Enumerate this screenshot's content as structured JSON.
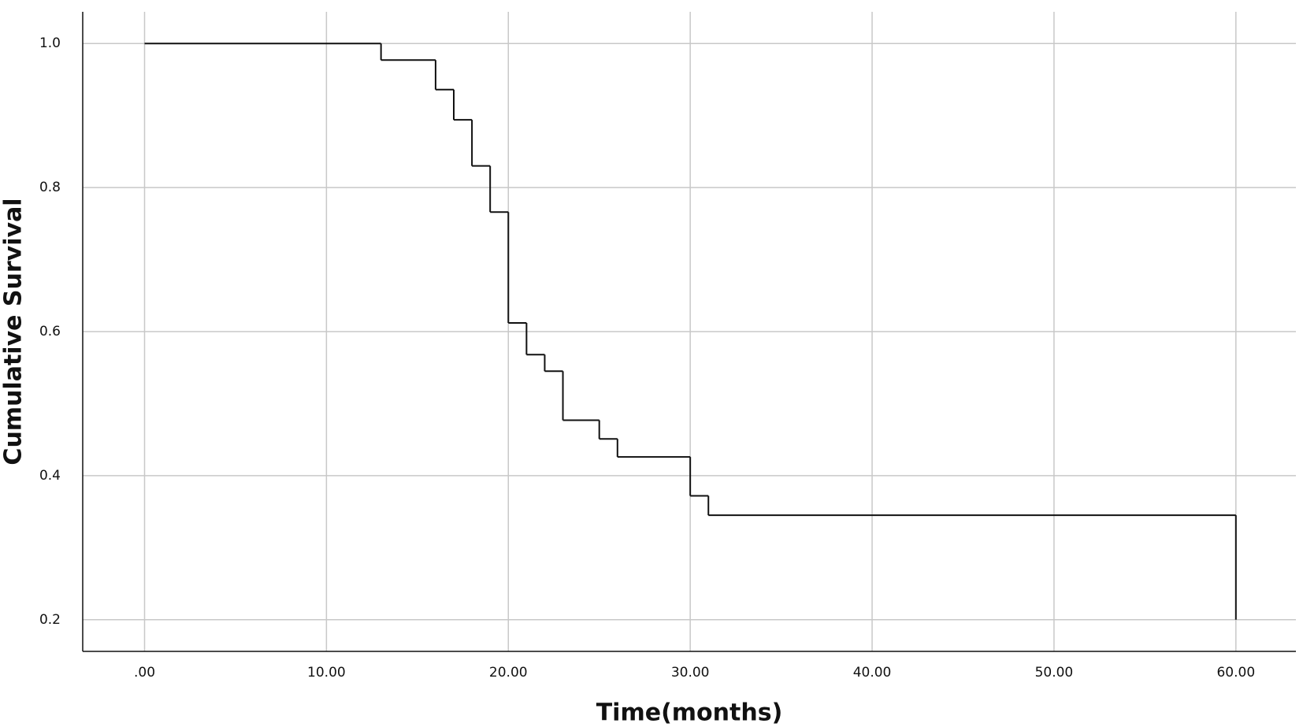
{
  "chart_data": {
    "type": "line",
    "step": "post",
    "xlabel": "Time(months)",
    "ylabel": "Cumulative Survival",
    "x": [
      0,
      13,
      16,
      17,
      18,
      19,
      20,
      21,
      22,
      23,
      25,
      26,
      30,
      31,
      60
    ],
    "series": [
      {
        "color": "#111111",
        "values": [
          1.0,
          0.977,
          0.936,
          0.894,
          0.83,
          0.766,
          0.612,
          0.568,
          0.545,
          0.477,
          0.451,
          0.426,
          0.372,
          0.345,
          0.2
        ]
      }
    ],
    "xlim": [
      -3.4,
      63.3
    ],
    "ylim": [
      0.156,
      1.044
    ],
    "xticks": [
      {
        "value": 0,
        "label": ".00"
      },
      {
        "value": 10,
        "label": "10.00"
      },
      {
        "value": 20,
        "label": "20.00"
      },
      {
        "value": 30,
        "label": "30.00"
      },
      {
        "value": 40,
        "label": "40.00"
      },
      {
        "value": 50,
        "label": "50.00"
      },
      {
        "value": 60,
        "label": "60.00"
      }
    ],
    "yticks": [
      0.2,
      0.4,
      0.6,
      0.8,
      {
        "value": 1.0,
        "label": "1.0"
      }
    ],
    "grid": true
  }
}
